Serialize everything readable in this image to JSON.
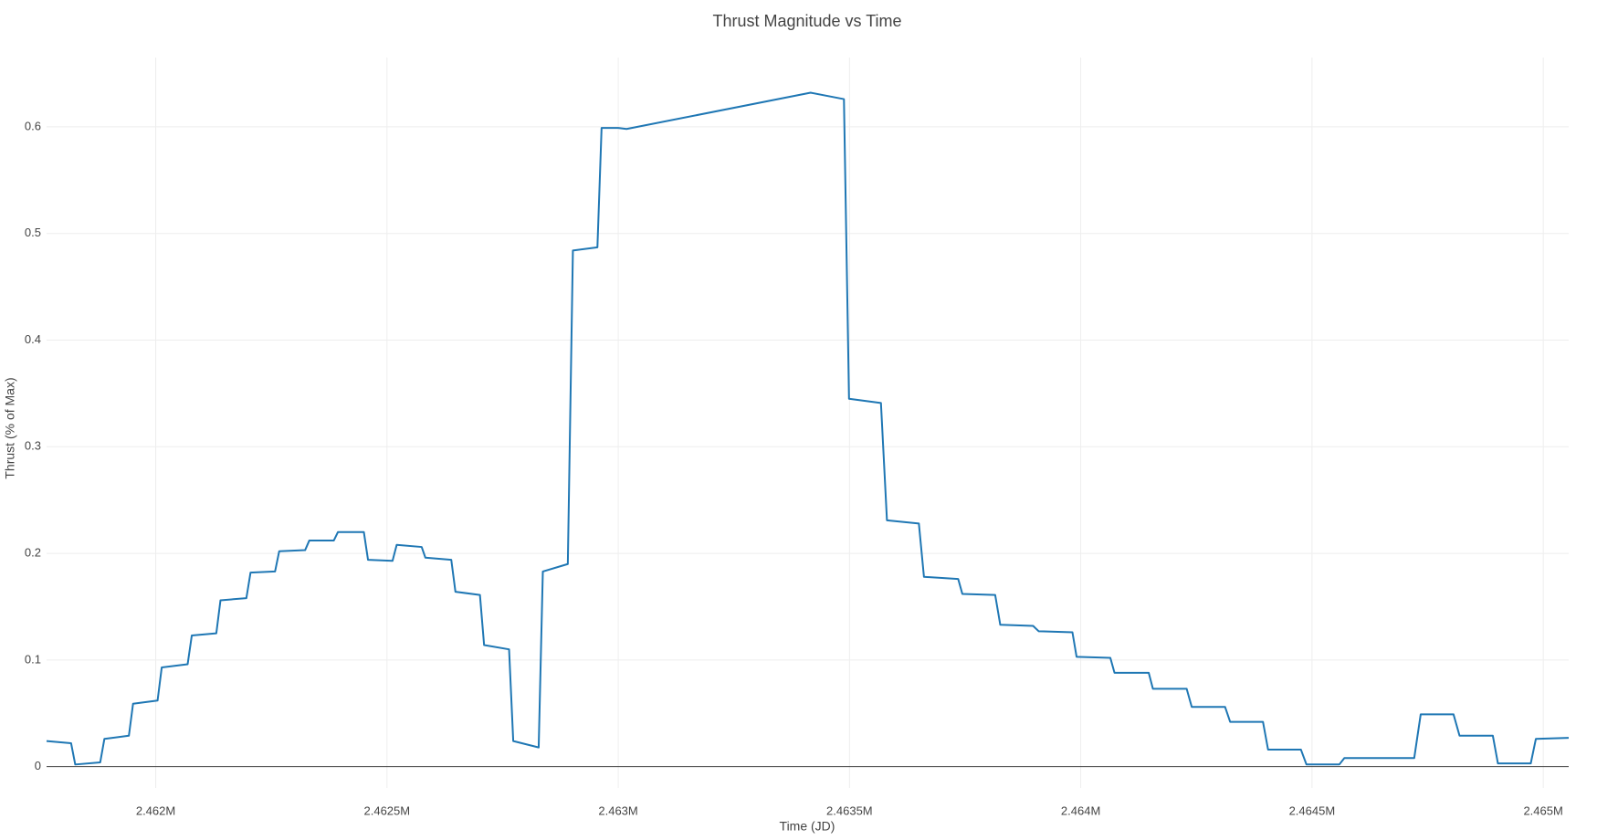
{
  "chart_data": {
    "type": "line",
    "title": "Thrust Magnitude vs Time",
    "x_label": "Time (JD)",
    "y_label": "Thrust (% of Max)",
    "color": "#1f77b4",
    "grid": true,
    "x": [
      2461764,
      2461817,
      2461826,
      2461880,
      2461889,
      2461942,
      2461951,
      2462004,
      2462013,
      2462069,
      2462078,
      2462131,
      2462140,
      2462196,
      2462205,
      2462258,
      2462267,
      2462323,
      2462332,
      2462385,
      2462394,
      2462450,
      2462459,
      2462512,
      2462521,
      2462575,
      2462583,
      2462639,
      2462648,
      2462701,
      2462710,
      2462764,
      2462773,
      2462828,
      2462837,
      2462891,
      2462902,
      2462955,
      2462964,
      2463000,
      2463018,
      2463416,
      2463488,
      2463499,
      2463568,
      2463581,
      2463650,
      2463661,
      2463735,
      2463744,
      2463815,
      2463826,
      2463897,
      2463909,
      2463982,
      2463991,
      2464064,
      2464073,
      2464147,
      2464156,
      2464229,
      2464240,
      2464312,
      2464323,
      2464394,
      2464405,
      2464476,
      2464488,
      2464559,
      2464570,
      2464721,
      2464735,
      2464806,
      2464819,
      2464891,
      2464902,
      2464973,
      2464984,
      2465055
    ],
    "values": [
      0.024,
      0.022,
      0.002,
      0.004,
      0.026,
      0.029,
      0.059,
      0.062,
      0.093,
      0.096,
      0.123,
      0.125,
      0.156,
      0.158,
      0.182,
      0.183,
      0.202,
      0.203,
      0.212,
      0.212,
      0.22,
      0.22,
      0.194,
      0.193,
      0.208,
      0.206,
      0.196,
      0.194,
      0.164,
      0.161,
      0.114,
      0.11,
      0.024,
      0.018,
      0.183,
      0.19,
      0.484,
      0.487,
      0.599,
      0.599,
      0.598,
      0.632,
      0.626,
      0.345,
      0.341,
      0.231,
      0.228,
      0.178,
      0.176,
      0.162,
      0.161,
      0.133,
      0.132,
      0.127,
      0.126,
      0.103,
      0.102,
      0.088,
      0.088,
      0.073,
      0.073,
      0.056,
      0.056,
      0.042,
      0.042,
      0.016,
      0.016,
      0.002,
      0.002,
      0.008,
      0.008,
      0.049,
      0.049,
      0.029,
      0.029,
      0.003,
      0.003,
      0.026,
      0.027
    ],
    "xlim": [
      2461764,
      2465055
    ],
    "xticks": [
      {
        "value": 2462000,
        "label": "2.462M"
      },
      {
        "value": 2462500,
        "label": "2.4625M"
      },
      {
        "value": 2463000,
        "label": "2.463M"
      },
      {
        "value": 2463500,
        "label": "2.4635M"
      },
      {
        "value": 2464000,
        "label": "2.464M"
      },
      {
        "value": 2464500,
        "label": "2.4645M"
      },
      {
        "value": 2465000,
        "label": "2.465M"
      }
    ],
    "ylim": [
      -0.02,
      0.665
    ],
    "yticks": [
      0,
      0.1,
      0.2,
      0.3,
      0.4,
      0.5,
      0.6
    ]
  }
}
